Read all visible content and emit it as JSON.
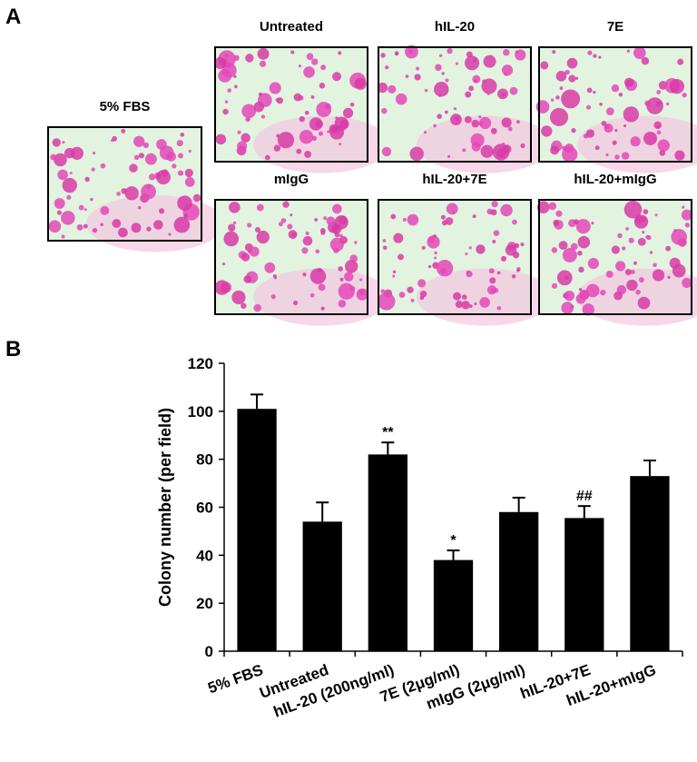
{
  "panel_labels": [
    "A",
    "B"
  ],
  "images": {
    "feature": "5% FBS",
    "grid": [
      "Untreated",
      "hIL-20",
      "7E",
      "mIgG",
      "hIL-20+7E",
      "hIL-20+mIgG"
    ]
  },
  "chart_data": {
    "type": "bar",
    "ylabel": "Colony number (per field)",
    "categories": [
      "5% FBS",
      "Untreated",
      "hIL-20 (200ng/ml)",
      "7E (2μg/ml)",
      "mIgG (2μg/ml)",
      "hIL-20+7E",
      "hIL-20+mIgG"
    ],
    "values": [
      101,
      54,
      82,
      38,
      58,
      55.5,
      73
    ],
    "errors": [
      6,
      8,
      5,
      4,
      6,
      5,
      6.5
    ],
    "value_annotations": [
      null,
      null,
      "**",
      "*",
      null,
      "##",
      null
    ],
    "color": "#000000",
    "ylim": [
      0,
      120
    ],
    "yticks": [
      0,
      20,
      40,
      60,
      80,
      100,
      120
    ],
    "grid": false
  }
}
